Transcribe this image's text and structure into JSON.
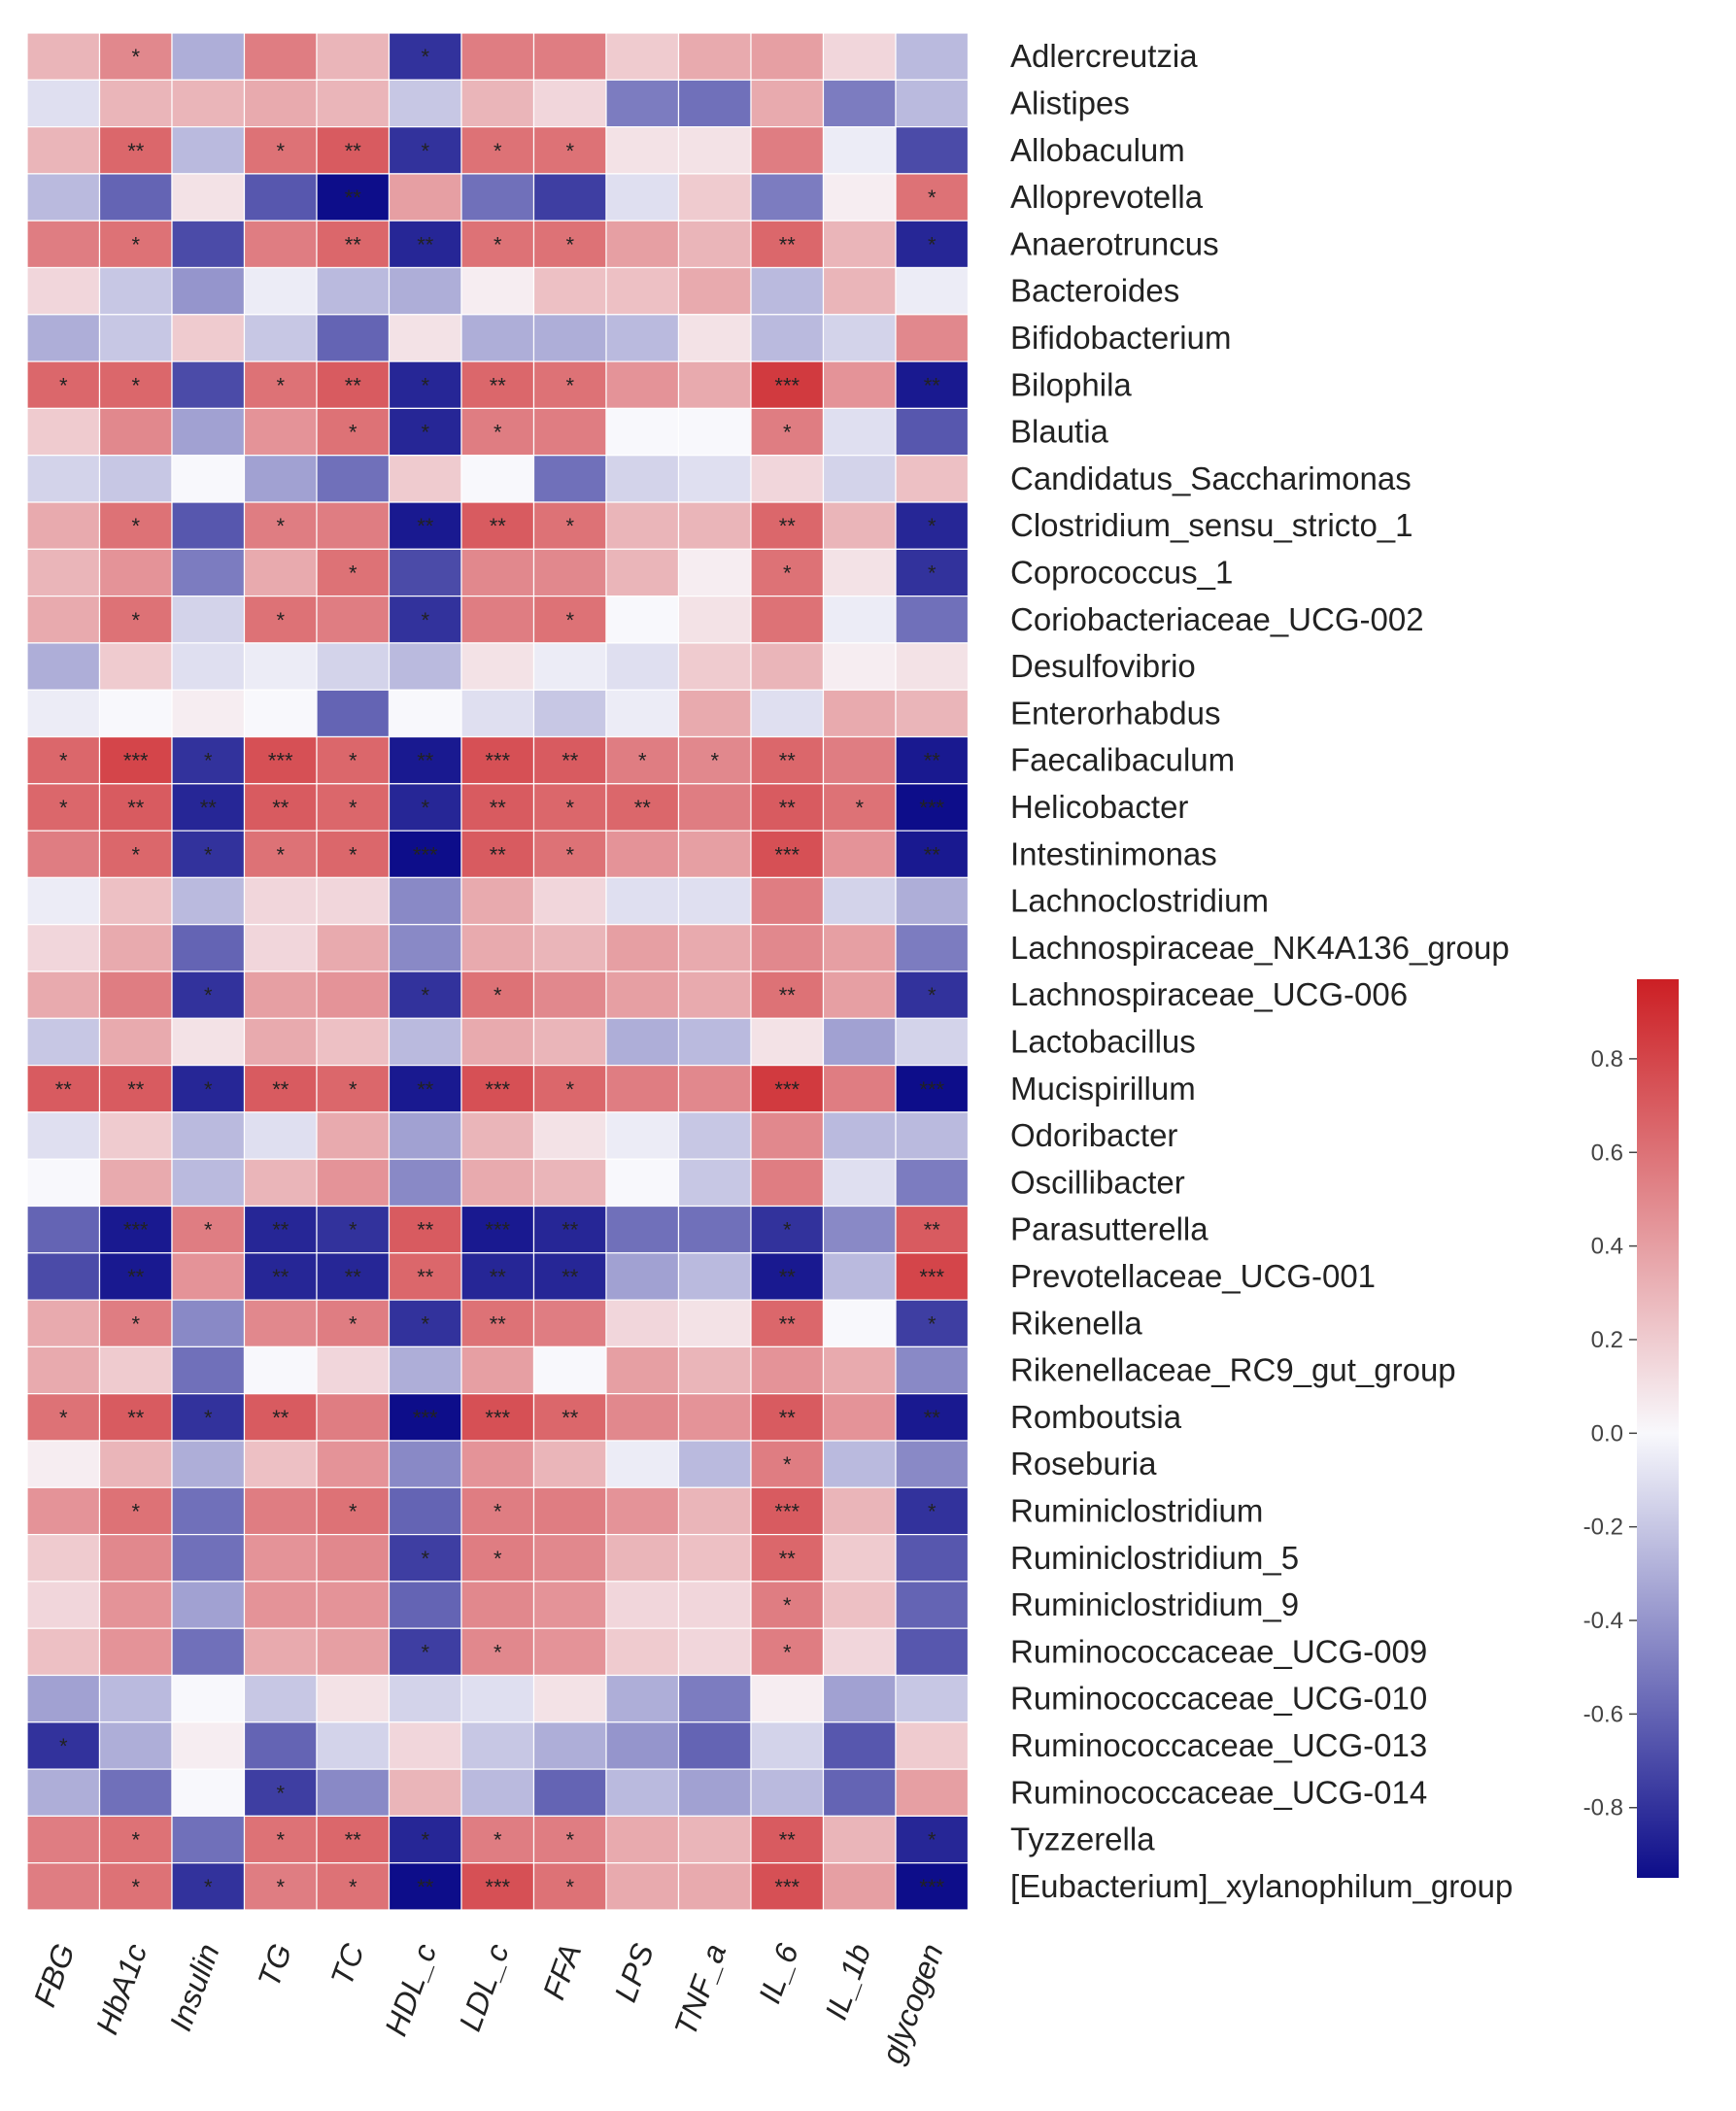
{
  "chart_data": {
    "type": "heatmap",
    "title": "",
    "columns": [
      "FBG",
      "HbA1c",
      "Insulin",
      "TG",
      "TC",
      "HDL_c",
      "LDL_c",
      "FFA",
      "LPS",
      "TNF_a",
      "IL_6",
      "IL_1b",
      "glycogen"
    ],
    "rows": [
      "Adlercreutzia",
      "Alistipes",
      "Allobaculum",
      "Alloprevotella",
      "Anaerotruncus",
      "Bacteroides",
      "Bifidobacterium",
      "Bilophila",
      "Blautia",
      "Candidatus_Saccharimonas",
      "Clostridium_sensu_stricto_1",
      "Coprococcus_1",
      "Coriobacteriaceae_UCG-002",
      "Desulfovibrio",
      "Enterorhabdus",
      "Faecalibaculum",
      "Helicobacter",
      "Intestinimonas",
      "Lachnoclostridium",
      "Lachnospiraceae_NK4A136_group",
      "Lachnospiraceae_UCG-006",
      "Lactobacillus",
      "Mucispirillum",
      "Odoribacter",
      "Oscillibacter",
      "Parasutterella",
      "Prevotellaceae_UCG-001",
      "Rikenella",
      "Rikenellaceae_RC9_gut_group",
      "Romboutsia",
      "Roseburia",
      "Ruminiclostridium",
      "Ruminiclostridium_5",
      "Ruminiclostridium_9",
      "Ruminococcaceae_UCG-009",
      "Ruminococcaceae_UCG-010",
      "Ruminococcaceae_UCG-013",
      "Ruminococcaceae_UCG-014",
      "Tyzzerella",
      "[Eubacterium]_xylanophilum_group"
    ],
    "values": [
      [
        0.3,
        0.5,
        -0.3,
        0.55,
        0.3,
        -0.8,
        0.55,
        0.55,
        0.2,
        0.35,
        0.4,
        0.15,
        -0.25
      ],
      [
        -0.1,
        0.3,
        0.3,
        0.35,
        0.3,
        -0.2,
        0.3,
        0.15,
        -0.5,
        -0.55,
        0.35,
        -0.5,
        -0.25
      ],
      [
        0.3,
        0.65,
        -0.25,
        0.6,
        0.7,
        -0.8,
        0.6,
        0.6,
        0.1,
        0.1,
        0.55,
        -0.05,
        -0.7
      ],
      [
        -0.25,
        -0.6,
        0.1,
        -0.65,
        -0.95,
        0.4,
        -0.55,
        -0.75,
        -0.1,
        0.2,
        -0.5,
        0.05,
        0.6
      ],
      [
        0.55,
        0.6,
        -0.7,
        0.55,
        0.65,
        -0.85,
        0.6,
        0.6,
        0.4,
        0.3,
        0.65,
        0.3,
        -0.85
      ],
      [
        0.15,
        -0.2,
        -0.4,
        -0.05,
        -0.25,
        -0.3,
        0.05,
        0.25,
        0.25,
        0.35,
        -0.25,
        0.3,
        -0.05
      ],
      [
        -0.3,
        -0.2,
        0.2,
        -0.2,
        -0.6,
        0.1,
        -0.3,
        -0.3,
        -0.25,
        0.1,
        -0.25,
        -0.15,
        0.5
      ],
      [
        0.65,
        0.65,
        -0.7,
        0.6,
        0.7,
        -0.85,
        0.65,
        0.6,
        0.45,
        0.35,
        0.85,
        0.45,
        -0.9
      ],
      [
        0.2,
        0.5,
        -0.35,
        0.45,
        0.6,
        -0.85,
        0.55,
        0.55,
        0.0,
        0.0,
        0.55,
        -0.1,
        -0.65
      ],
      [
        -0.15,
        -0.2,
        0.0,
        -0.35,
        -0.55,
        0.2,
        0.0,
        -0.55,
        -0.15,
        -0.1,
        0.15,
        -0.15,
        0.25
      ],
      [
        0.35,
        0.6,
        -0.65,
        0.55,
        0.55,
        -0.9,
        0.7,
        0.6,
        0.3,
        0.3,
        0.65,
        0.3,
        -0.85
      ],
      [
        0.3,
        0.45,
        -0.5,
        0.35,
        0.6,
        -0.7,
        0.5,
        0.5,
        0.3,
        0.05,
        0.6,
        0.1,
        -0.8
      ],
      [
        0.35,
        0.6,
        -0.15,
        0.6,
        0.55,
        -0.8,
        0.55,
        0.6,
        0.0,
        0.1,
        0.6,
        -0.05,
        -0.55
      ],
      [
        -0.3,
        0.2,
        -0.1,
        -0.05,
        -0.15,
        -0.25,
        0.1,
        -0.05,
        -0.1,
        0.2,
        0.3,
        0.05,
        0.1
      ],
      [
        -0.05,
        0.0,
        0.05,
        0.0,
        -0.6,
        0.0,
        -0.1,
        -0.2,
        -0.05,
        0.35,
        -0.1,
        0.35,
        0.3
      ],
      [
        0.65,
        0.8,
        -0.8,
        0.75,
        0.65,
        -0.9,
        0.75,
        0.7,
        0.55,
        0.5,
        0.65,
        0.55,
        -0.9
      ],
      [
        0.65,
        0.7,
        -0.85,
        0.7,
        0.65,
        -0.85,
        0.7,
        0.65,
        0.65,
        0.55,
        0.7,
        0.6,
        -0.95
      ],
      [
        0.55,
        0.65,
        -0.8,
        0.6,
        0.65,
        -0.95,
        0.7,
        0.6,
        0.45,
        0.4,
        0.75,
        0.45,
        -0.9
      ],
      [
        -0.05,
        0.25,
        -0.25,
        0.15,
        0.15,
        -0.45,
        0.35,
        0.15,
        -0.1,
        -0.1,
        0.55,
        -0.15,
        -0.3
      ],
      [
        0.15,
        0.35,
        -0.6,
        0.15,
        0.35,
        -0.45,
        0.35,
        0.3,
        0.4,
        0.35,
        0.5,
        0.4,
        -0.5
      ],
      [
        0.35,
        0.55,
        -0.8,
        0.4,
        0.45,
        -0.8,
        0.6,
        0.5,
        0.4,
        0.35,
        0.6,
        0.4,
        -0.8
      ],
      [
        -0.2,
        0.35,
        0.1,
        0.35,
        0.25,
        -0.25,
        0.35,
        0.3,
        -0.3,
        -0.25,
        0.1,
        -0.35,
        -0.15
      ],
      [
        0.7,
        0.7,
        -0.85,
        0.7,
        0.65,
        -0.9,
        0.75,
        0.65,
        0.55,
        0.5,
        0.85,
        0.55,
        -0.95
      ],
      [
        -0.1,
        0.2,
        -0.25,
        -0.1,
        0.35,
        -0.35,
        0.3,
        0.1,
        -0.05,
        -0.2,
        0.5,
        -0.25,
        -0.25
      ],
      [
        0.0,
        0.35,
        -0.25,
        0.3,
        0.45,
        -0.45,
        0.35,
        0.3,
        0.0,
        -0.2,
        0.55,
        -0.1,
        -0.5
      ],
      [
        -0.6,
        -0.9,
        0.55,
        -0.85,
        -0.8,
        0.7,
        -0.9,
        -0.85,
        -0.55,
        -0.55,
        -0.8,
        -0.45,
        0.7
      ],
      [
        -0.7,
        -0.9,
        0.45,
        -0.85,
        -0.85,
        0.65,
        -0.85,
        -0.85,
        -0.35,
        -0.25,
        -0.9,
        -0.25,
        0.8
      ],
      [
        0.35,
        0.55,
        -0.45,
        0.5,
        0.55,
        -0.8,
        0.6,
        0.55,
        0.15,
        0.1,
        0.65,
        0.0,
        -0.75
      ],
      [
        0.35,
        0.2,
        -0.55,
        0.0,
        0.15,
        -0.3,
        0.4,
        0.0,
        0.4,
        0.3,
        0.45,
        0.35,
        -0.45
      ],
      [
        0.6,
        0.7,
        -0.8,
        0.7,
        0.55,
        -0.95,
        0.75,
        0.65,
        0.5,
        0.45,
        0.7,
        0.45,
        -0.9
      ],
      [
        0.05,
        0.3,
        -0.3,
        0.25,
        0.45,
        -0.45,
        0.45,
        0.3,
        -0.05,
        -0.25,
        0.55,
        -0.25,
        -0.45
      ],
      [
        0.45,
        0.6,
        -0.55,
        0.55,
        0.6,
        -0.6,
        0.55,
        0.55,
        0.45,
        0.3,
        0.7,
        0.3,
        -0.8
      ],
      [
        0.2,
        0.5,
        -0.55,
        0.45,
        0.5,
        -0.75,
        0.55,
        0.5,
        0.3,
        0.25,
        0.65,
        0.2,
        -0.65
      ],
      [
        0.15,
        0.45,
        -0.35,
        0.45,
        0.45,
        -0.6,
        0.5,
        0.45,
        0.15,
        0.15,
        0.55,
        0.25,
        -0.6
      ],
      [
        0.25,
        0.45,
        -0.55,
        0.35,
        0.4,
        -0.75,
        0.5,
        0.45,
        0.2,
        0.15,
        0.55,
        0.15,
        -0.65
      ],
      [
        -0.35,
        -0.25,
        0.0,
        -0.2,
        0.1,
        -0.15,
        -0.1,
        0.1,
        -0.3,
        -0.5,
        0.05,
        -0.35,
        -0.2
      ],
      [
        -0.8,
        -0.3,
        0.05,
        -0.6,
        -0.15,
        0.15,
        -0.2,
        -0.3,
        -0.4,
        -0.6,
        -0.15,
        -0.65,
        0.2
      ],
      [
        -0.3,
        -0.55,
        0.0,
        -0.75,
        -0.45,
        0.3,
        -0.25,
        -0.6,
        -0.25,
        -0.35,
        -0.25,
        -0.6,
        0.4
      ],
      [
        0.55,
        0.6,
        -0.55,
        0.6,
        0.65,
        -0.85,
        0.55,
        0.55,
        0.35,
        0.3,
        0.7,
        0.3,
        -0.85
      ],
      [
        0.55,
        0.6,
        -0.8,
        0.55,
        0.6,
        -0.95,
        0.75,
        0.6,
        0.35,
        0.35,
        0.75,
        0.4,
        -0.95
      ]
    ],
    "significance": [
      [
        "",
        "*",
        "",
        "",
        "",
        "*",
        "",
        "",
        "",
        "",
        "",
        "",
        ""
      ],
      [
        "",
        "",
        "",
        "",
        "",
        "",
        "",
        "",
        "",
        "",
        "",
        "",
        ""
      ],
      [
        "",
        "**",
        "",
        "*",
        "**",
        "*",
        "*",
        "*",
        "",
        "",
        "",
        "",
        ""
      ],
      [
        "",
        "",
        "",
        "",
        "**",
        "",
        "",
        "",
        "",
        "",
        "",
        "",
        "*"
      ],
      [
        "",
        "*",
        "",
        "",
        "**",
        "**",
        "*",
        "*",
        "",
        "",
        "**",
        "",
        "*"
      ],
      [
        "",
        "",
        "",
        "",
        "",
        "",
        "",
        "",
        "",
        "",
        "",
        "",
        ""
      ],
      [
        "",
        "",
        "",
        "",
        "",
        "",
        "",
        "",
        "",
        "",
        "",
        "",
        ""
      ],
      [
        "*",
        "*",
        "",
        "*",
        "**",
        "*",
        "**",
        "*",
        "",
        "",
        "***",
        "",
        "**"
      ],
      [
        "",
        "",
        "",
        "",
        "*",
        "*",
        "*",
        "",
        "",
        "",
        "*",
        "",
        ""
      ],
      [
        "",
        "",
        "",
        "",
        "",
        "",
        "",
        "",
        "",
        "",
        "",
        "",
        ""
      ],
      [
        "",
        "*",
        "",
        "*",
        "",
        "**",
        "**",
        "*",
        "",
        "",
        "**",
        "",
        "*"
      ],
      [
        "",
        "",
        "",
        "",
        "*",
        "",
        "",
        "",
        "",
        "",
        "*",
        "",
        "*"
      ],
      [
        "",
        "*",
        "",
        "*",
        "",
        "*",
        "",
        "*",
        "",
        "",
        "",
        "",
        ""
      ],
      [
        "",
        "",
        "",
        "",
        "",
        "",
        "",
        "",
        "",
        "",
        "",
        "",
        ""
      ],
      [
        "",
        "",
        "",
        "",
        "",
        "",
        "",
        "",
        "",
        "",
        "",
        "",
        ""
      ],
      [
        "*",
        "***",
        "*",
        "***",
        "*",
        "**",
        "***",
        "**",
        "*",
        "*",
        "**",
        "",
        "**"
      ],
      [
        "*",
        "**",
        "**",
        "**",
        "*",
        "*",
        "**",
        "*",
        "**",
        "",
        "**",
        "*",
        "***"
      ],
      [
        "",
        "*",
        "*",
        "*",
        "*",
        "***",
        "**",
        "*",
        "",
        "",
        "***",
        "",
        "**"
      ],
      [
        "",
        "",
        "",
        "",
        "",
        "",
        "",
        "",
        "",
        "",
        "",
        "",
        ""
      ],
      [
        "",
        "",
        "",
        "",
        "",
        "",
        "",
        "",
        "",
        "",
        "",
        "",
        ""
      ],
      [
        "",
        "",
        "*",
        "",
        "",
        "*",
        "*",
        "",
        "",
        "",
        "**",
        "",
        "*"
      ],
      [
        "",
        "",
        "",
        "",
        "",
        "",
        "",
        "",
        "",
        "",
        "",
        "",
        ""
      ],
      [
        "**",
        "**",
        "*",
        "**",
        "*",
        "**",
        "***",
        "*",
        "",
        "",
        "***",
        "",
        "***"
      ],
      [
        "",
        "",
        "",
        "",
        "",
        "",
        "",
        "",
        "",
        "",
        "",
        "",
        ""
      ],
      [
        "",
        "",
        "",
        "",
        "",
        "",
        "",
        "",
        "",
        "",
        "",
        "",
        ""
      ],
      [
        "",
        "***",
        "*",
        "**",
        "*",
        "**",
        "***",
        "**",
        "",
        "",
        "*",
        "",
        "**"
      ],
      [
        "",
        "**",
        "",
        "**",
        "**",
        "**",
        "**",
        "**",
        "",
        "",
        "**",
        "",
        "***"
      ],
      [
        "",
        "*",
        "",
        "",
        "*",
        "*",
        "**",
        "",
        "",
        "",
        "**",
        "",
        "*"
      ],
      [
        "",
        "",
        "",
        "",
        "",
        "",
        "",
        "",
        "",
        "",
        "",
        "",
        ""
      ],
      [
        "*",
        "**",
        "*",
        "**",
        "",
        "***",
        "***",
        "**",
        "",
        "",
        "**",
        "",
        "**"
      ],
      [
        "",
        "",
        "",
        "",
        "",
        "",
        "",
        "",
        "",
        "",
        "*",
        "",
        ""
      ],
      [
        "",
        "*",
        "",
        "",
        "*",
        "",
        "*",
        "",
        "",
        "",
        "***",
        "",
        "*"
      ],
      [
        "",
        "",
        "",
        "",
        "",
        "*",
        "*",
        "",
        "",
        "",
        "**",
        "",
        ""
      ],
      [
        "",
        "",
        "",
        "",
        "",
        "",
        "",
        "",
        "",
        "",
        "*",
        "",
        ""
      ],
      [
        "",
        "",
        "",
        "",
        "",
        "*",
        "*",
        "",
        "",
        "",
        "*",
        "",
        ""
      ],
      [
        "",
        "",
        "",
        "",
        "",
        "",
        "",
        "",
        "",
        "",
        "",
        "",
        ""
      ],
      [
        "*",
        "",
        "",
        "",
        "",
        "",
        "",
        "",
        "",
        "",
        "",
        "",
        ""
      ],
      [
        "",
        "",
        "",
        "*",
        "",
        "",
        "",
        "",
        "",
        "",
        "",
        "",
        ""
      ],
      [
        "",
        "*",
        "",
        "*",
        "**",
        "*",
        "*",
        "*",
        "",
        "",
        "**",
        "",
        "*"
      ],
      [
        "",
        "*",
        "*",
        "*",
        "*",
        "**",
        "***",
        "*",
        "",
        "",
        "***",
        "",
        "***"
      ]
    ],
    "colorbar": {
      "min": -0.95,
      "max": 0.97,
      "ticks": [
        0.8,
        0.6,
        0.4,
        0.2,
        0.0,
        -0.2,
        -0.4,
        -0.6,
        -0.8
      ],
      "tick_labels": [
        "0.8",
        "0.6",
        "0.4",
        "0.2",
        "0.0",
        "-0.2",
        "-0.4",
        "-0.6",
        "-0.8"
      ],
      "low_color": "#0d0d8a",
      "mid_color": "#f8f8fc",
      "high_color": "#cc1f24"
    }
  }
}
